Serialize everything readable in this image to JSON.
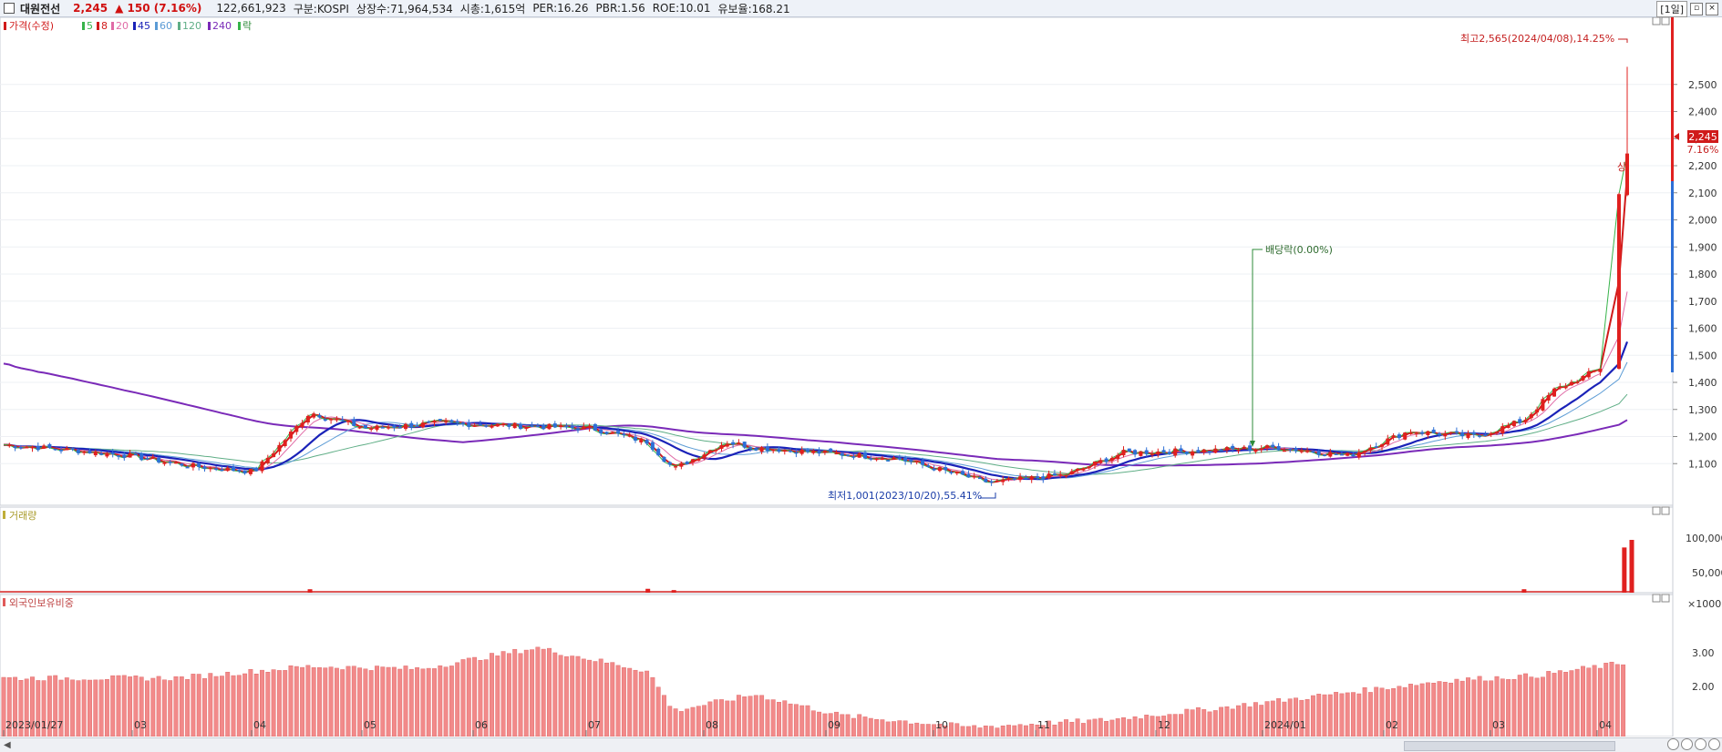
{
  "header": {
    "name": "대원전선",
    "price": "2,245",
    "change": "▲ 150 (7.16%)",
    "volume": "122,661,923",
    "market": "구분:KOSPI",
    "shares": "상장수:71,964,534",
    "cap": "시총:1,615억",
    "per": "PER:16.26",
    "pbr": "PBR:1.56",
    "roe": "ROE:10.01",
    "float": "유보율:168.21",
    "period": "[1일]"
  },
  "legend": {
    "price": "가격(수정)",
    "ma": [
      "5",
      "8",
      "20",
      "45",
      "60",
      "120",
      "240"
    ],
    "rak": "락"
  },
  "colors": {
    "up": "#e0201f",
    "down": "#2d6fd6",
    "ma5": "#37b34a",
    "ma8": "#d01a1a",
    "ma20": "#e06aa6",
    "ma45": "#1a22b8",
    "ma60": "#5b9bd5",
    "ma120": "#5fae86",
    "ma240": "#7a2ab8"
  },
  "annotations": {
    "high": "최고2,565(2024/04/08),14.25%",
    "low": "최저1,001(2023/10/20),55.41%",
    "dividend": "배당락(0.00%)",
    "limit_up": "상",
    "cur_price": "2,245",
    "cur_pct": "7.16%"
  },
  "price_axis": [
    "2,500",
    "2,400",
    "2,300",
    "2,200",
    "2,100",
    "2,000",
    "1,900",
    "1,800",
    "1,700",
    "1,600",
    "1,500",
    "1,400",
    "1,300",
    "1,200",
    "1,100"
  ],
  "volume_panel": {
    "title": "거래량",
    "axis": [
      "100,000",
      "50,000",
      "×1000"
    ]
  },
  "foreign_panel": {
    "title": "외국인보유비중",
    "axis": [
      "3.00",
      "2.00"
    ]
  },
  "x_axis": [
    "2023/01/27",
    "03",
    "04",
    "05",
    "06",
    "07",
    "08",
    "09",
    "10",
    "11",
    "12",
    "2024/01",
    "02",
    "03",
    "04"
  ],
  "chart_data": [
    {
      "type": "line",
      "ylim": [
        1000,
        2620
      ],
      "xlim": [
        "2023/01/27",
        "2024/04/10"
      ],
      "series": [
        {
          "name": "가격(수정)",
          "x": [
            "2023/01/27",
            "2023/02/15",
            "2023/03/02",
            "2023/03/20",
            "2023/04/05",
            "2023/04/12",
            "2023/04/20",
            "2023/05/05",
            "2023/05/25",
            "2023/06/15",
            "2023/07/05",
            "2023/07/20",
            "2023/07/27",
            "2023/08/10",
            "2023/08/18",
            "2023/09/05",
            "2023/09/25",
            "2023/10/20",
            "2023/11/10",
            "2023/11/25",
            "2023/12/20",
            "2024/01/05",
            "2024/01/25",
            "2024/02/10",
            "2024/02/28",
            "2024/03/12",
            "2024/03/20",
            "2024/03/28",
            "2024/04/05",
            "2024/04/08",
            "2024/04/10"
          ],
          "close": [
            1170,
            1150,
            1130,
            1090,
            1070,
            1170,
            1290,
            1230,
            1250,
            1240,
            1230,
            1180,
            1080,
            1180,
            1160,
            1140,
            1120,
            1030,
            1060,
            1140,
            1150,
            1160,
            1130,
            1220,
            1200,
            1260,
            1370,
            1420,
            1480,
            2095,
            2245
          ]
        }
      ],
      "high": "2,565 (2024/04/08)",
      "low": "1,001 (2023/10/20)"
    },
    {
      "type": "bar",
      "name": "거래량",
      "unit": "×1000",
      "categories": [
        "2023/04/20",
        "2023/07/20",
        "2023/07/27",
        "2024/03/12",
        "2024/04/08",
        "2024/04/10"
      ],
      "values": [
        8000,
        9000,
        6000,
        8000,
        105000,
        122661
      ]
    },
    {
      "type": "bar",
      "name": "외국인보유비중",
      "x": [
        "2023/01/27",
        "2023/03/15",
        "2023/04/20",
        "2023/05/20",
        "2023/06/20",
        "2023/07/20",
        "2023/07/27",
        "2023/08/18",
        "2023/09/10",
        "2023/10/15",
        "2023/11/20",
        "2023/12/20",
        "2024/01/20",
        "2024/02/20",
        "2024/03/15",
        "2024/04/10"
      ],
      "values": [
        2.85,
        2.85,
        3.1,
        3.05,
        3.5,
        3.0,
        2.15,
        2.5,
        2.05,
        1.8,
        1.95,
        2.2,
        2.5,
        2.8,
        2.9,
        3.2
      ]
    }
  ]
}
